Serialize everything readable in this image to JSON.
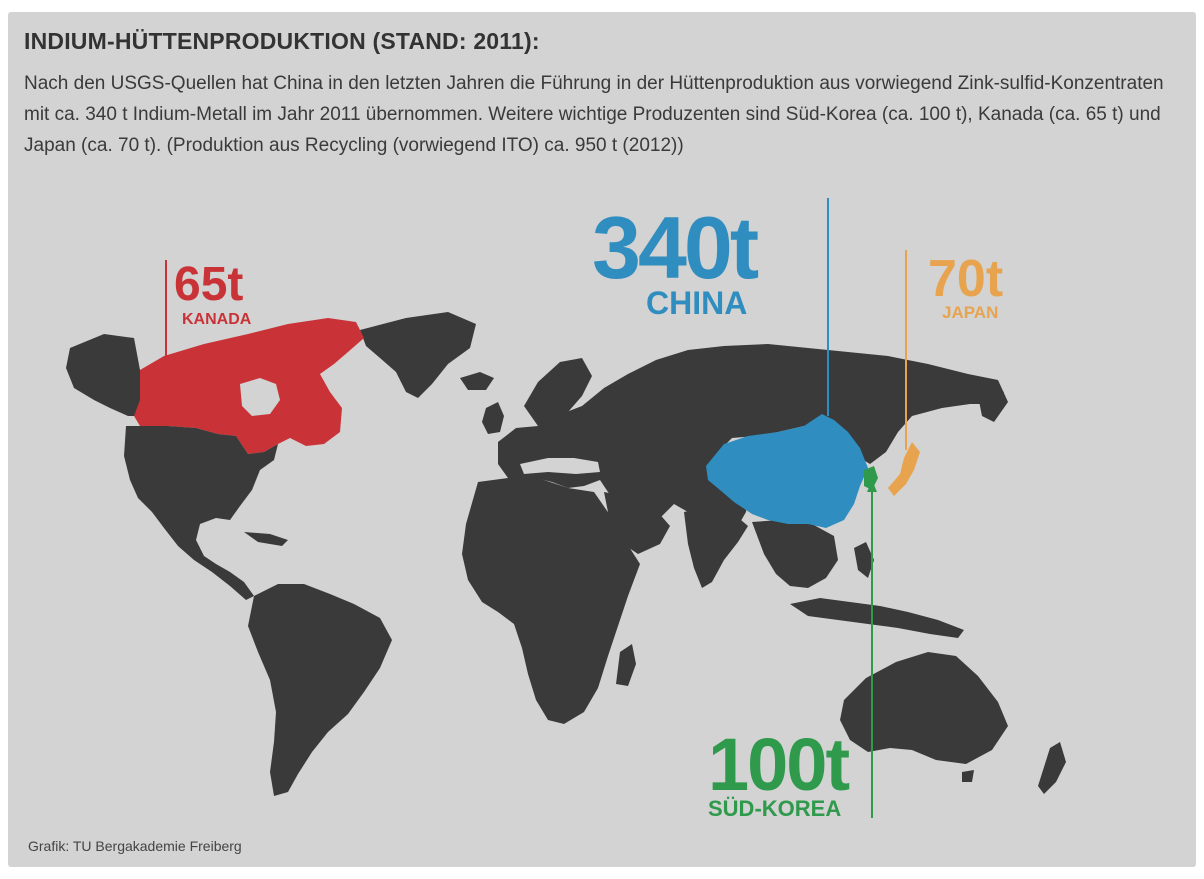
{
  "header": {
    "title": "INDIUM-HÜTTENPRODUKTION (STAND: 2011):",
    "subtitle": "Nach den USGS-Quellen hat China in den letzten Jahren die Führung in der Hüttenproduktion aus vorwiegend Zink-sulfid-Konzentraten mit ca. 340 t Indium-Metall im Jahr 2011 übernommen. Weitere wichtige Produzenten sind Süd-Korea (ca. 100 t), Kanada (ca. 65 t) und Japan (ca. 70 t). (Produktion aus Recycling (vorwiegend ITO) ca. 950 t (2012))"
  },
  "map": {
    "land_color": "#3a3a3a",
    "background_color": "#d2d3d2",
    "labels": {
      "china": {
        "value": "340t",
        "country": "CHINA",
        "color": "#2f8ebf"
      },
      "canada": {
        "value": "65t",
        "country": "KANADA",
        "color": "#c93338"
      },
      "japan": {
        "value": "70t",
        "country": "JAPAN",
        "color": "#e8a34f"
      },
      "korea": {
        "value": "100t",
        "country": "SÜD-KOREA",
        "color": "#2f9a4c"
      }
    }
  },
  "footer": {
    "credit": "Grafik: TU Bergakademie Freiberg"
  }
}
